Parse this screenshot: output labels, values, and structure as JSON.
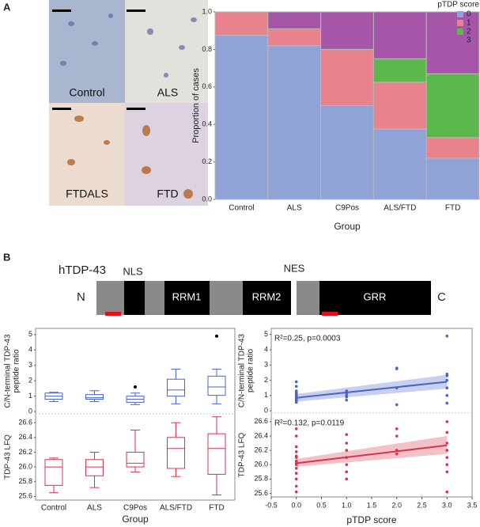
{
  "panel_labels": [
    "A",
    "B"
  ],
  "images": [
    "Control",
    "ALS",
    "FTDALS",
    "FTD"
  ],
  "diagram": {
    "title": "hTDP-43",
    "n_term": "N",
    "c_term": "C",
    "domains": [
      "NLS",
      "RRM1",
      "RRM2",
      "NES",
      "GRR"
    ]
  },
  "chart_data": [
    {
      "type": "stacked_bar",
      "categories": [
        "Control",
        "ALS",
        "C9Pos",
        "ALS/FTD",
        "FTD"
      ],
      "series": [
        {
          "name": "0",
          "color": "#8fa3d6",
          "values": [
            0.875,
            0.82,
            0.5,
            0.375,
            0.22
          ]
        },
        {
          "name": "1",
          "color": "#e8828c",
          "values": [
            0.125,
            0.09,
            0.3,
            0.25,
            0.11
          ]
        },
        {
          "name": "2",
          "color": "#5cb84c",
          "values": [
            0,
            0,
            0,
            0.125,
            0.34
          ]
        },
        {
          "name": "3",
          "color": "#a656a8",
          "values": [
            0,
            0.09,
            0.2,
            0.25,
            0.33
          ]
        }
      ],
      "ylim": [
        0,
        1
      ],
      "yticks": [
        {
          "value": 0,
          "label": "0.0"
        },
        0.2,
        0.4,
        0.6,
        0.8,
        {
          "value": 1,
          "label": "1.0"
        }
      ],
      "ylabel": "Proportion of cases",
      "xlabel": "Group",
      "legend_title": "pTDP score",
      "legend": "right"
    },
    {
      "type": "box",
      "color": "#4a63c4",
      "boxes": [
        {
          "low": 0.65,
          "q1": 0.8,
          "median": 1.0,
          "q3": 1.2,
          "high": 1.25,
          "outliers": []
        },
        {
          "low": 0.65,
          "q1": 0.8,
          "median": 0.9,
          "q3": 1.1,
          "high": 1.35,
          "outliers": []
        },
        {
          "low": 0.45,
          "q1": 0.6,
          "median": 0.8,
          "q3": 1.0,
          "high": 1.2,
          "outliers": [
            1.6
          ]
        },
        {
          "low": 0.5,
          "q1": 1.0,
          "median": 1.4,
          "q3": 2.1,
          "high": 2.75,
          "outliers": []
        },
        {
          "low": 0.5,
          "q1": 1.05,
          "median": 1.6,
          "q3": 2.3,
          "high": 2.75,
          "outliers": [
            4.9
          ]
        }
      ],
      "ylim": [
        -0.15,
        5.4
      ],
      "yticks": [
        0,
        1,
        2,
        3,
        4,
        5
      ],
      "ylabel": [
        "C/N-terminal TDP-43",
        "peptide ratio"
      ]
    },
    {
      "type": "box",
      "color": "#d6344c",
      "categories": [
        "Control",
        "ALS",
        "C9Pos",
        "ALS/FTD",
        "FTD"
      ],
      "boxes": [
        {
          "low": 25.65,
          "q1": 25.75,
          "median": 26.0,
          "q3": 26.1,
          "high": 26.12,
          "outliers": []
        },
        {
          "low": 25.72,
          "q1": 25.88,
          "median": 26.0,
          "q3": 26.1,
          "high": 26.2,
          "outliers": []
        },
        {
          "low": 25.93,
          "q1": 26.0,
          "median": 26.05,
          "q3": 26.2,
          "high": 26.5,
          "outliers": []
        },
        {
          "low": 25.87,
          "q1": 25.98,
          "median": 26.25,
          "q3": 26.4,
          "high": 26.6,
          "outliers": []
        },
        {
          "low": 25.62,
          "q1": 25.9,
          "median": 26.25,
          "q3": 26.45,
          "high": 26.68,
          "outliers": []
        }
      ],
      "ylim": [
        25.55,
        26.72
      ],
      "yticks": [
        25.6,
        25.8,
        {
          "value": 26,
          "label": "26.0"
        },
        26.2,
        26.4,
        26.6
      ],
      "ylabel": [
        "TDP-43 LFQ"
      ],
      "xlabel": "Group"
    },
    {
      "type": "scatter",
      "color": "#4a63c4",
      "x": [
        0,
        0,
        0,
        0,
        0,
        0,
        0,
        0,
        0,
        0,
        0,
        0,
        0,
        0,
        0,
        1,
        1,
        1,
        1,
        1,
        2,
        2,
        2,
        2,
        3,
        3,
        3,
        3,
        3,
        3,
        3
      ],
      "y": [
        0.55,
        0.65,
        0.75,
        0.8,
        0.85,
        0.9,
        0.95,
        1.0,
        1.0,
        1.05,
        1.1,
        1.2,
        1.3,
        1.6,
        1.9,
        0.7,
        0.9,
        1.0,
        1.15,
        1.3,
        0.4,
        1.5,
        2.75,
        2.8,
        0.5,
        1.0,
        1.5,
        2.0,
        2.3,
        2.4,
        4.9
      ],
      "fit": {
        "x": [
          0,
          3
        ],
        "y": [
          0.85,
          1.9
        ]
      },
      "band": {
        "x": [
          0,
          3
        ],
        "lower": [
          0.6,
          1.45
        ],
        "upper": [
          1.1,
          2.35
        ]
      },
      "annotation": "R²=0.25, p=0.0003",
      "xlim": [
        -0.5,
        3.5
      ],
      "ylim": [
        -0.15,
        5.4
      ],
      "yticks": [
        0,
        1,
        2,
        3,
        4,
        5
      ],
      "ylabel": [
        "C/N-terminal TDP-43",
        "peptide ratio"
      ]
    },
    {
      "type": "scatter",
      "color": "#d6344c",
      "x": [
        0,
        0,
        0,
        0,
        0,
        0,
        0,
        0,
        0,
        0,
        0,
        0,
        0,
        0,
        1,
        1,
        1,
        1,
        1,
        1,
        1,
        2,
        2,
        2,
        2,
        3,
        3,
        3,
        3,
        3,
        3,
        3,
        3
      ],
      "y": [
        25.62,
        25.7,
        25.8,
        25.88,
        25.95,
        26.0,
        26.02,
        26.05,
        26.1,
        26.12,
        26.18,
        26.25,
        26.4,
        26.5,
        25.8,
        25.9,
        26.0,
        26.1,
        26.2,
        26.3,
        26.42,
        26.15,
        26.2,
        26.4,
        26.5,
        25.62,
        25.9,
        26.0,
        26.1,
        26.2,
        26.3,
        26.45,
        26.6
      ],
      "fit": {
        "x": [
          0,
          3
        ],
        "y": [
          26.02,
          26.27
        ]
      },
      "band": {
        "x": [
          0,
          3
        ],
        "lower": [
          25.97,
          26.15
        ],
        "upper": [
          26.08,
          26.4
        ]
      },
      "annotation": "R²=0.132, p=0.0119",
      "xlim": [
        -0.5,
        3.5
      ],
      "xticks": [
        -0.5,
        {
          "value": 0,
          "label": "0.0"
        },
        0.5,
        {
          "value": 1,
          "label": "1.0"
        },
        1.5,
        {
          "value": 2,
          "label": "2.0"
        },
        2.5,
        {
          "value": 3,
          "label": "3.0"
        },
        3.5
      ],
      "ylim": [
        25.55,
        26.72
      ],
      "yticks": [
        25.6,
        25.8,
        {
          "value": 26,
          "label": "26.0"
        },
        26.2,
        26.4,
        26.6
      ],
      "ylabel": [
        "TDP-43 LFQ"
      ],
      "xlabel": "pTDP score"
    }
  ]
}
